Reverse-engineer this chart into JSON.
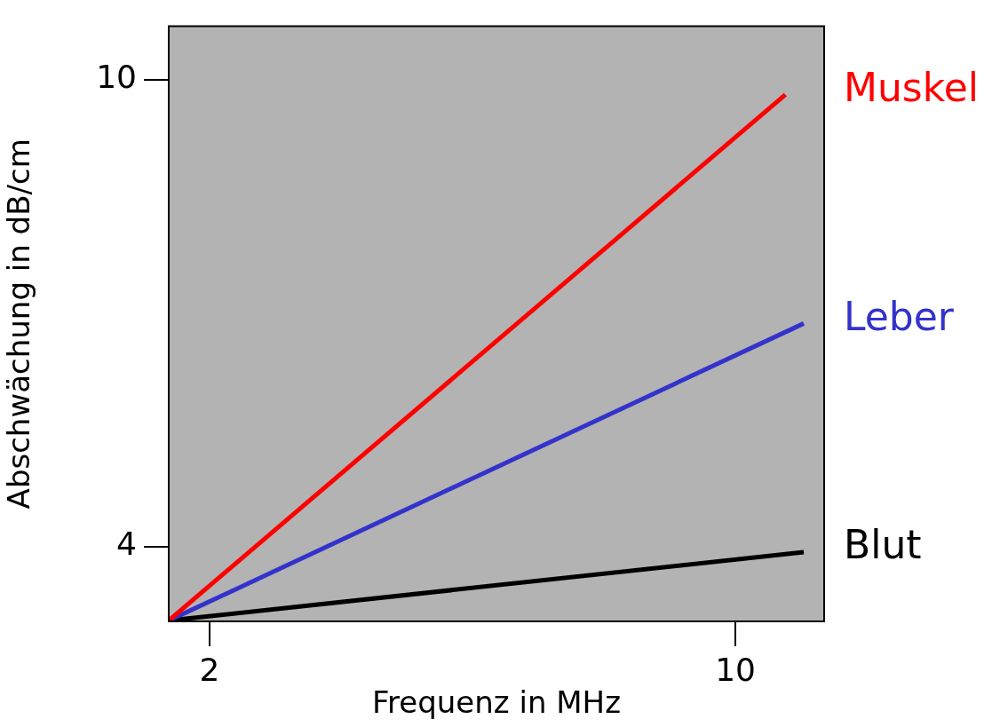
{
  "chart_data": {
    "type": "line",
    "xlabel": "Frequenz in MHz",
    "ylabel": "Abschwächung in dB/cm",
    "xlim": [
      1.38,
      11.35
    ],
    "ylim": [
      3.04,
      10.69
    ],
    "xticks": [
      2,
      10
    ],
    "yticks": [
      4,
      10
    ],
    "grid": false,
    "legend": false,
    "marker": "none",
    "line_style": "solid",
    "series": [
      {
        "name": "Muskel",
        "color": "#ff0000",
        "x": [
          1.38,
          10.76
        ],
        "values": [
          3.05,
          9.81
        ]
      },
      {
        "name": "Leber",
        "color": "#3333cc",
        "x": [
          1.38,
          11.04
        ],
        "values": [
          3.05,
          6.87
        ]
      },
      {
        "name": "Blut",
        "color": "#000000",
        "x": [
          1.38,
          11.04
        ],
        "values": [
          3.05,
          3.93
        ]
      }
    ]
  }
}
